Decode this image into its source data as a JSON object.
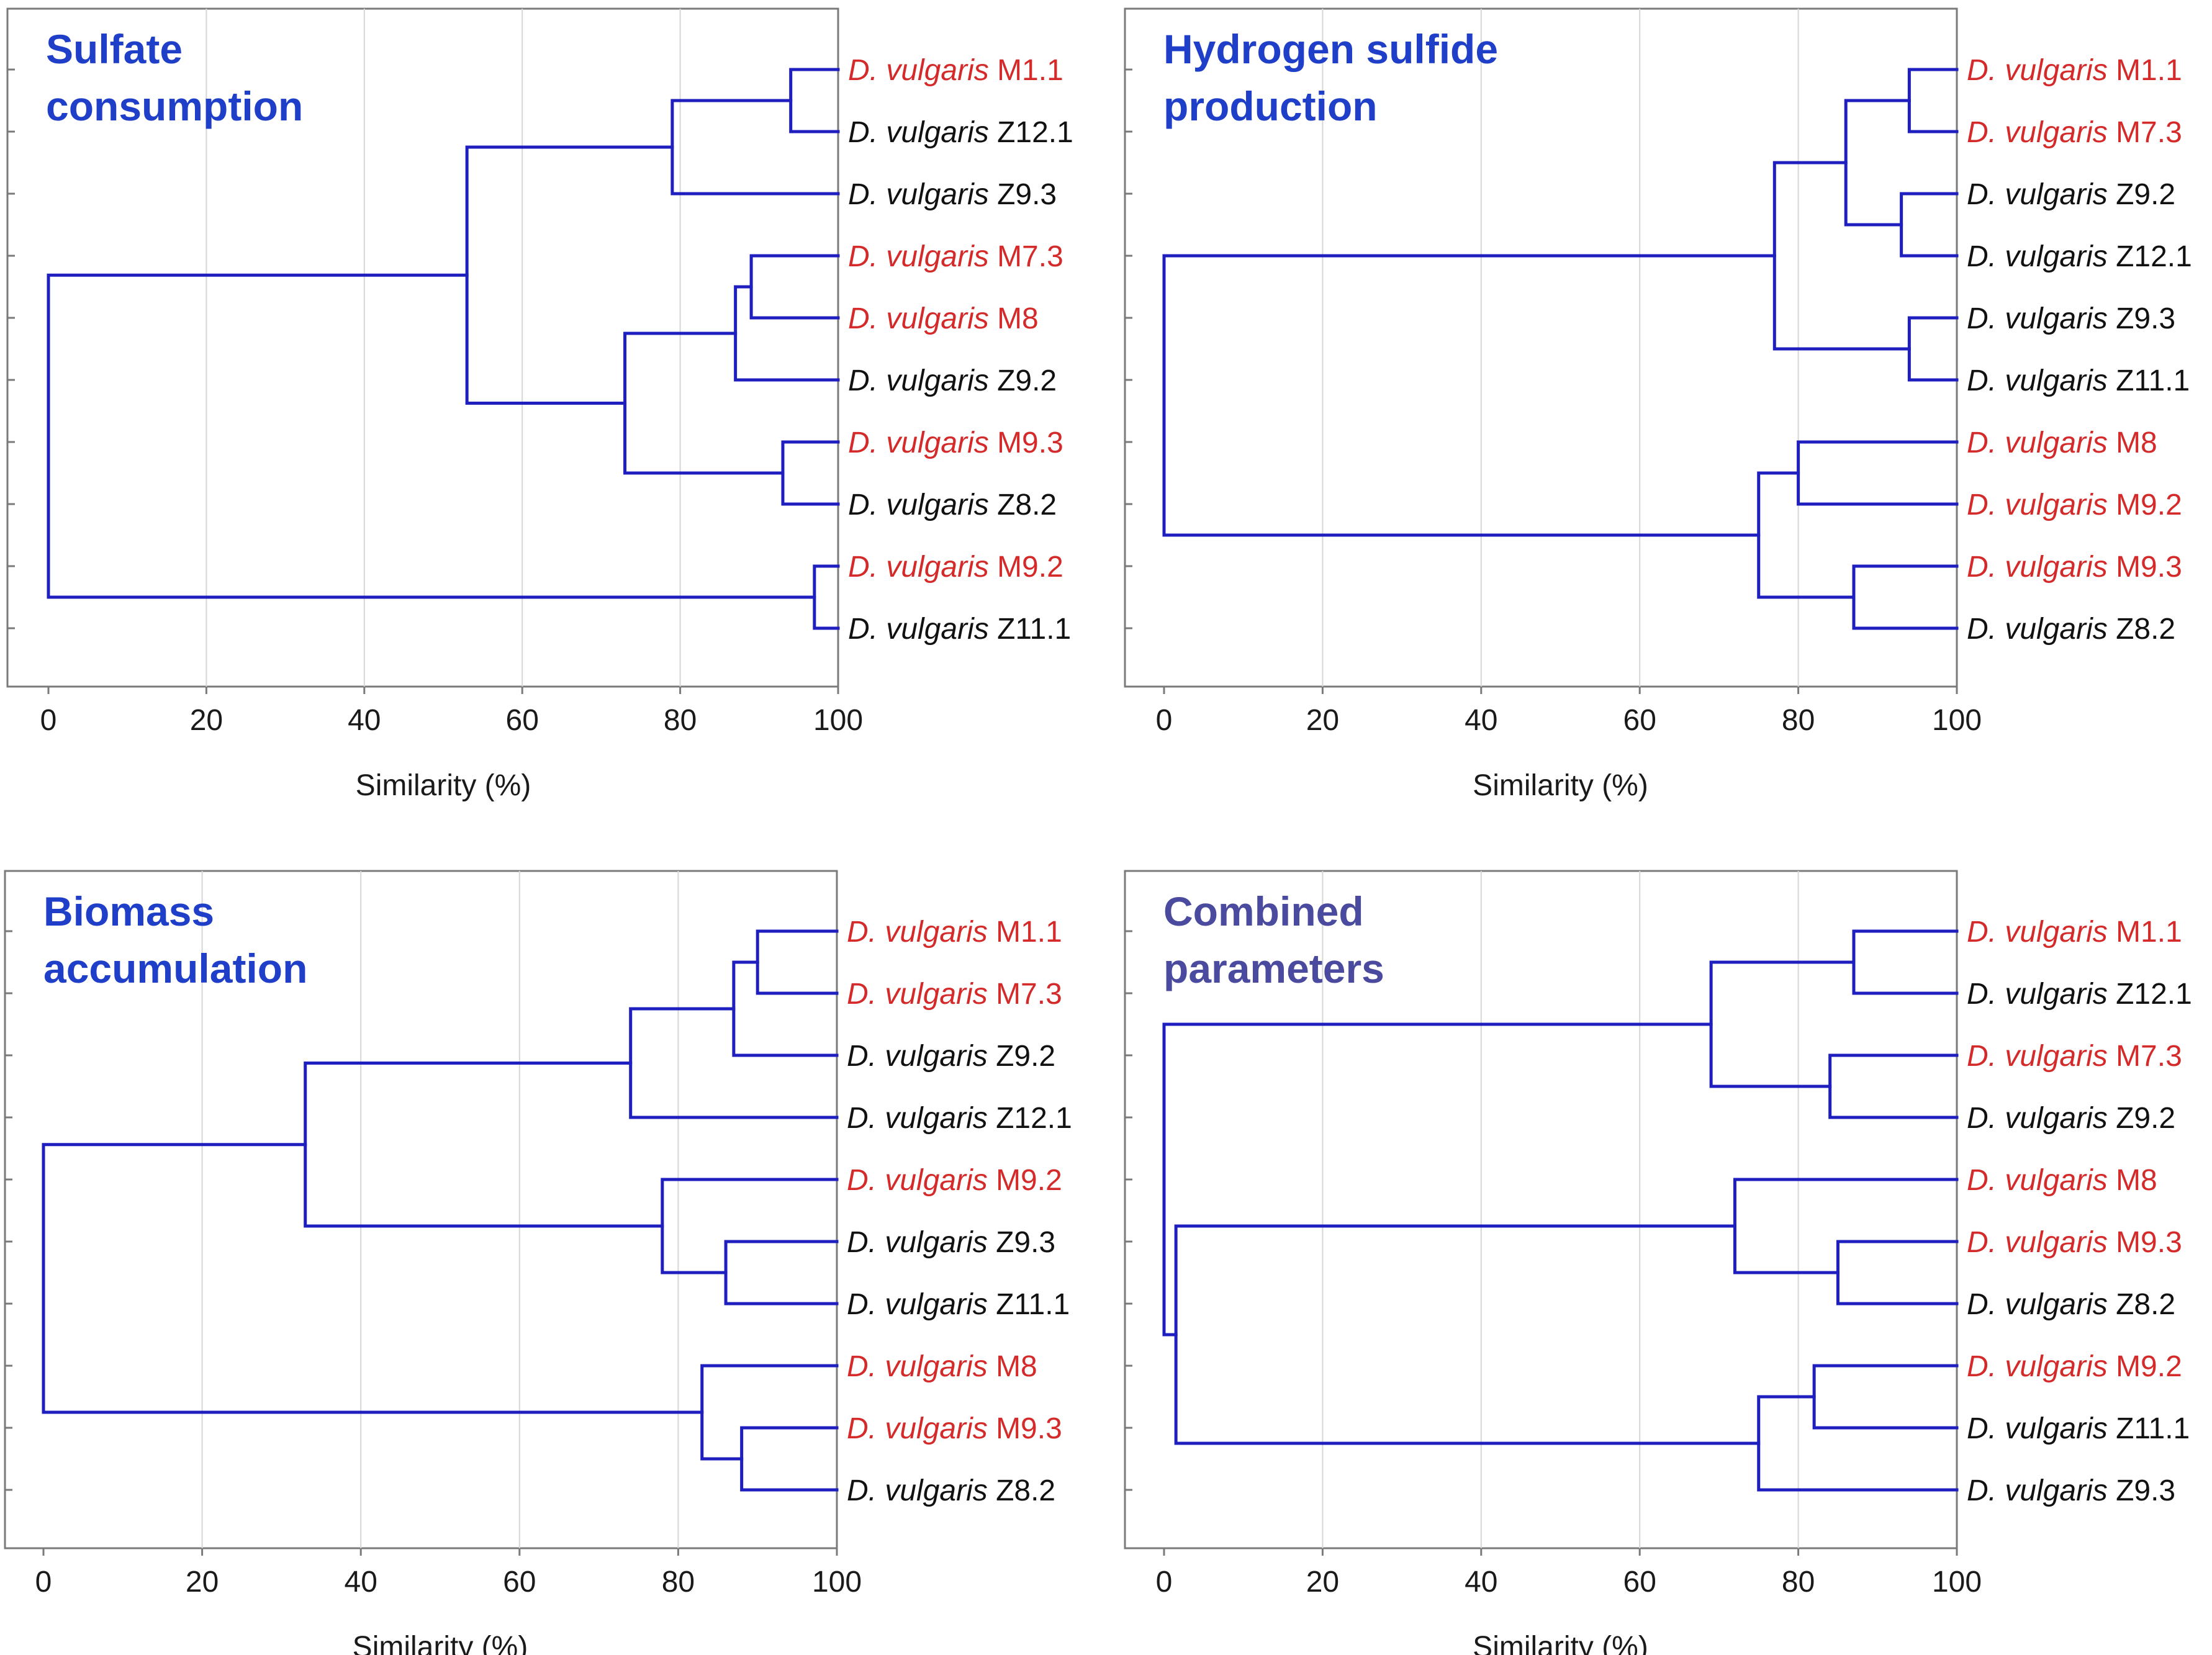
{
  "axis_title": "Similarity (%)",
  "colors": {
    "branch": "#1f1fbf",
    "title": "#1f3fc8",
    "title_combined": "#4a4a9f",
    "reference": "#d42a2a",
    "mutant": "#111111"
  },
  "chart_data": [
    {
      "type": "dendrogram",
      "title_lines": [
        "Sulfate",
        "consumption"
      ],
      "xlabel": "Similarity (%)",
      "xlim": [
        0,
        100
      ],
      "xticks": [
        0,
        20,
        40,
        60,
        80,
        100
      ],
      "leaves": [
        {
          "genus": "D. vulgaris",
          "strain": "M1.1",
          "group": "reference"
        },
        {
          "genus": "D. vulgaris",
          "strain": "Z12.1",
          "group": "mutant"
        },
        {
          "genus": "D. vulgaris",
          "strain": "Z9.3",
          "group": "mutant"
        },
        {
          "genus": "D. vulgaris",
          "strain": "M7.3",
          "group": "reference"
        },
        {
          "genus": "D. vulgaris",
          "strain": "M8",
          "group": "reference"
        },
        {
          "genus": "D. vulgaris",
          "strain": "Z9.2",
          "group": "mutant"
        },
        {
          "genus": "D. vulgaris",
          "strain": "M9.3",
          "group": "reference"
        },
        {
          "genus": "D. vulgaris",
          "strain": "Z8.2",
          "group": "mutant"
        },
        {
          "genus": "D. vulgaris",
          "strain": "M9.2",
          "group": "reference"
        },
        {
          "genus": "D. vulgaris",
          "strain": "Z11.1",
          "group": "mutant"
        }
      ],
      "merges": [
        {
          "a": 0,
          "b": 1,
          "similarity": 94
        },
        {
          "a": 10,
          "b": 2,
          "similarity": 79
        },
        {
          "a": 3,
          "b": 4,
          "similarity": 89
        },
        {
          "a": 12,
          "b": 5,
          "similarity": 87
        },
        {
          "a": 6,
          "b": 7,
          "similarity": 93
        },
        {
          "a": 13,
          "b": 14,
          "similarity": 73
        },
        {
          "a": 11,
          "b": 15,
          "similarity": 53
        },
        {
          "a": 8,
          "b": 9,
          "similarity": 97
        },
        {
          "a": 16,
          "b": 17,
          "similarity": 0
        }
      ]
    },
    {
      "type": "dendrogram",
      "title_lines": [
        "Hydrogen sulfide",
        "production"
      ],
      "xlabel": "Similarity (%)",
      "xlim": [
        0,
        100
      ],
      "xticks": [
        0,
        20,
        40,
        60,
        80,
        100
      ],
      "leaves": [
        {
          "genus": "D. vulgaris",
          "strain": "M1.1",
          "group": "reference"
        },
        {
          "genus": "D. vulgaris",
          "strain": "M7.3",
          "group": "reference"
        },
        {
          "genus": "D. vulgaris",
          "strain": "Z9.2",
          "group": "mutant"
        },
        {
          "genus": "D. vulgaris",
          "strain": "Z12.1",
          "group": "mutant"
        },
        {
          "genus": "D. vulgaris",
          "strain": "Z9.3",
          "group": "mutant"
        },
        {
          "genus": "D. vulgaris",
          "strain": "Z11.1",
          "group": "mutant"
        },
        {
          "genus": "D. vulgaris",
          "strain": "M8",
          "group": "reference"
        },
        {
          "genus": "D. vulgaris",
          "strain": "M9.2",
          "group": "reference"
        },
        {
          "genus": "D. vulgaris",
          "strain": "M9.3",
          "group": "reference"
        },
        {
          "genus": "D. vulgaris",
          "strain": "Z8.2",
          "group": "mutant"
        }
      ],
      "merges": [
        {
          "a": 0,
          "b": 1,
          "similarity": 94
        },
        {
          "a": 2,
          "b": 3,
          "similarity": 93
        },
        {
          "a": 10,
          "b": 11,
          "similarity": 86
        },
        {
          "a": 4,
          "b": 5,
          "similarity": 94
        },
        {
          "a": 12,
          "b": 13,
          "similarity": 77
        },
        {
          "a": 6,
          "b": 7,
          "similarity": 80
        },
        {
          "a": 8,
          "b": 9,
          "similarity": 87
        },
        {
          "a": 15,
          "b": 16,
          "similarity": 75
        },
        {
          "a": 14,
          "b": 17,
          "similarity": 0
        }
      ]
    },
    {
      "type": "dendrogram",
      "title_lines": [
        "Biomass",
        "accumulation"
      ],
      "xlabel": "Similarity (%)",
      "xlim": [
        0,
        100
      ],
      "xticks": [
        0,
        20,
        40,
        60,
        80,
        100
      ],
      "leaves": [
        {
          "genus": "D. vulgaris",
          "strain": "M1.1",
          "group": "reference"
        },
        {
          "genus": "D. vulgaris",
          "strain": "M7.3",
          "group": "reference"
        },
        {
          "genus": "D. vulgaris",
          "strain": "Z9.2",
          "group": "mutant"
        },
        {
          "genus": "D. vulgaris",
          "strain": "Z12.1",
          "group": "mutant"
        },
        {
          "genus": "D. vulgaris",
          "strain": "M9.2",
          "group": "reference"
        },
        {
          "genus": "D. vulgaris",
          "strain": "Z9.3",
          "group": "mutant"
        },
        {
          "genus": "D. vulgaris",
          "strain": "Z11.1",
          "group": "mutant"
        },
        {
          "genus": "D. vulgaris",
          "strain": "M8",
          "group": "reference"
        },
        {
          "genus": "D. vulgaris",
          "strain": "M9.3",
          "group": "reference"
        },
        {
          "genus": "D. vulgaris",
          "strain": "Z8.2",
          "group": "mutant"
        }
      ],
      "merges": [
        {
          "a": 0,
          "b": 1,
          "similarity": 90
        },
        {
          "a": 10,
          "b": 2,
          "similarity": 87
        },
        {
          "a": 11,
          "b": 3,
          "similarity": 74
        },
        {
          "a": 5,
          "b": 6,
          "similarity": 86
        },
        {
          "a": 4,
          "b": 13,
          "similarity": 78
        },
        {
          "a": 12,
          "b": 14,
          "similarity": 33
        },
        {
          "a": 8,
          "b": 9,
          "similarity": 88
        },
        {
          "a": 7,
          "b": 16,
          "similarity": 83
        },
        {
          "a": 15,
          "b": 17,
          "similarity": 0
        }
      ]
    },
    {
      "type": "dendrogram",
      "title_lines": [
        "Combined",
        "parameters"
      ],
      "xlabel": "Similarity (%)",
      "xlim": [
        0,
        100
      ],
      "xticks": [
        0,
        20,
        40,
        60,
        80,
        100
      ],
      "leaves": [
        {
          "genus": "D. vulgaris",
          "strain": "M1.1",
          "group": "reference"
        },
        {
          "genus": "D. vulgaris",
          "strain": "Z12.1",
          "group": "mutant"
        },
        {
          "genus": "D. vulgaris",
          "strain": "M7.3",
          "group": "reference"
        },
        {
          "genus": "D. vulgaris",
          "strain": "Z9.2",
          "group": "mutant"
        },
        {
          "genus": "D. vulgaris",
          "strain": "M8",
          "group": "reference"
        },
        {
          "genus": "D. vulgaris",
          "strain": "M9.3",
          "group": "reference"
        },
        {
          "genus": "D. vulgaris",
          "strain": "Z8.2",
          "group": "mutant"
        },
        {
          "genus": "D. vulgaris",
          "strain": "M9.2",
          "group": "reference"
        },
        {
          "genus": "D. vulgaris",
          "strain": "Z11.1",
          "group": "mutant"
        },
        {
          "genus": "D. vulgaris",
          "strain": "Z9.3",
          "group": "mutant"
        }
      ],
      "merges": [
        {
          "a": 0,
          "b": 1,
          "similarity": 87
        },
        {
          "a": 2,
          "b": 3,
          "similarity": 84
        },
        {
          "a": 10,
          "b": 11,
          "similarity": 69
        },
        {
          "a": 5,
          "b": 6,
          "similarity": 85
        },
        {
          "a": 4,
          "b": 13,
          "similarity": 72
        },
        {
          "a": 7,
          "b": 8,
          "similarity": 82
        },
        {
          "a": 15,
          "b": 9,
          "similarity": 75
        },
        {
          "a": 14,
          "b": 16,
          "similarity": 1.5
        },
        {
          "a": 12,
          "b": 17,
          "similarity": 0
        }
      ]
    }
  ]
}
